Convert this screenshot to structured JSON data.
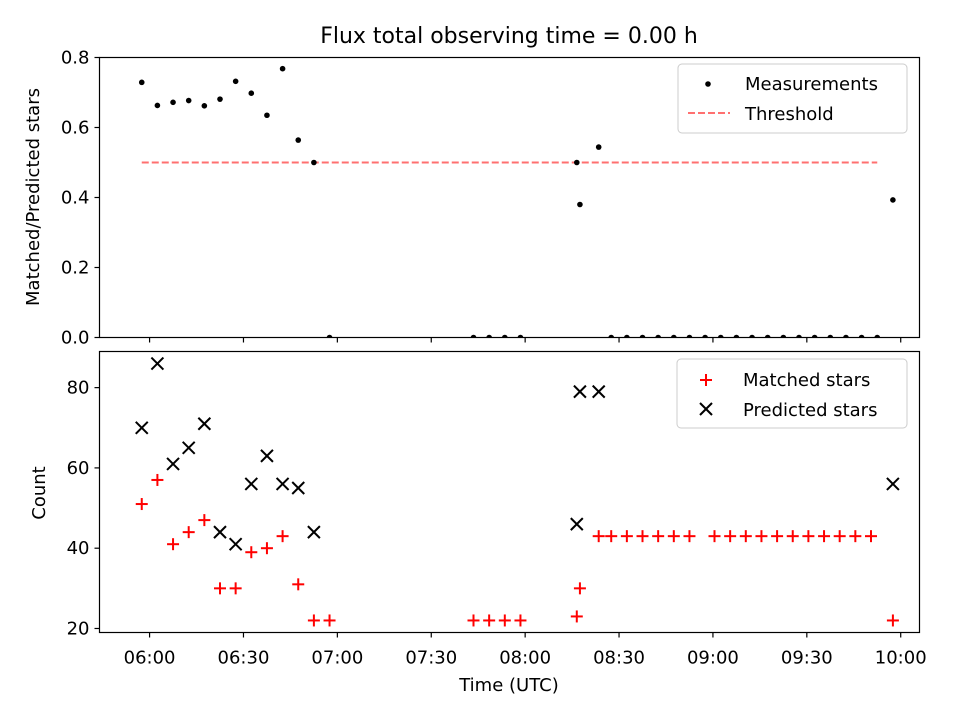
{
  "chart_data": {
    "type": "scatter",
    "title": "Flux total observing time = 0.00 h",
    "xlabel": "Time (UTC)",
    "x_tick_labels": [
      "06:00",
      "06:30",
      "07:00",
      "07:30",
      "08:00",
      "08:30",
      "09:00",
      "09:30",
      "10:00"
    ],
    "x_tick_minutes": [
      360,
      390,
      420,
      450,
      480,
      510,
      540,
      570,
      600
    ],
    "xlim_minutes": [
      344,
      606
    ],
    "top": {
      "ylabel": "Matched/Predicted stars",
      "ylim": [
        0,
        0.8
      ],
      "y_ticks": [
        0.0,
        0.2,
        0.4,
        0.6,
        0.8
      ],
      "y_tick_labels": [
        "0.0",
        "0.2",
        "0.4",
        "0.6",
        "0.8"
      ],
      "measurements": {
        "name": "Measurements",
        "color": "#000000",
        "x": [
          357.5,
          362.5,
          367.5,
          372.5,
          377.5,
          382.5,
          387.5,
          392.5,
          397.5,
          402.5,
          407.5,
          412.5,
          417.5,
          463.5,
          468.5,
          473.5,
          478.5,
          496.5,
          497.5,
          503.5,
          507.5,
          512.5,
          517.5,
          522.5,
          527.5,
          532.5,
          537.5,
          542.5,
          547.5,
          552.5,
          557.5,
          562.5,
          567.5,
          572.5,
          577.5,
          582.5,
          587.5,
          592.5,
          597.5
        ],
        "y": [
          0.729,
          0.663,
          0.672,
          0.677,
          0.662,
          0.681,
          0.732,
          0.698,
          0.635,
          0.768,
          0.564,
          0.5,
          0.0,
          0.0,
          0.0,
          0.0,
          0.0,
          0.5,
          0.38,
          0.544,
          0.0,
          0.0,
          0.0,
          0.0,
          0.0,
          0.0,
          0.0,
          0.0,
          0.0,
          0.0,
          0.0,
          0.0,
          0.0,
          0.0,
          0.0,
          0.0,
          0.0,
          0.0,
          0.393
        ]
      },
      "threshold": {
        "name": "Threshold",
        "color": "#ff7070",
        "value": 0.5,
        "x_range": [
          357.5,
          592.5
        ]
      }
    },
    "bottom": {
      "ylabel": "Count",
      "ylim": [
        19,
        89
      ],
      "y_ticks": [
        20,
        40,
        60,
        80
      ],
      "y_tick_labels": [
        "20",
        "40",
        "60",
        "80"
      ],
      "matched": {
        "name": "Matched stars",
        "color": "#ff0000",
        "x": [
          357.5,
          362.5,
          367.5,
          372.5,
          377.5,
          382.5,
          387.5,
          392.5,
          397.5,
          402.5,
          407.5,
          412.5,
          417.5,
          463.5,
          468.5,
          473.5,
          478.5,
          496.5,
          497.5,
          503.5,
          507.5,
          512.5,
          517.5,
          522.5,
          527.5,
          532.5,
          540.5,
          545.5,
          550.5,
          555.5,
          560.5,
          565.5,
          570.5,
          575.5,
          580.5,
          585.5,
          590.5,
          597.5
        ],
        "y": [
          51,
          57,
          41,
          44,
          47,
          30,
          30,
          39,
          40,
          43,
          31,
          22,
          22,
          22,
          22,
          22,
          22,
          23,
          30,
          43,
          43,
          43,
          43,
          43,
          43,
          43,
          43,
          43,
          43,
          43,
          43,
          43,
          43,
          43,
          43,
          43,
          43,
          22
        ]
      },
      "predicted": {
        "name": "Predicted stars",
        "color": "#000000",
        "x": [
          357.5,
          362.5,
          367.5,
          372.5,
          377.5,
          382.5,
          387.5,
          392.5,
          397.5,
          402.5,
          407.5,
          412.5,
          496.5,
          497.5,
          503.5,
          597.5
        ],
        "y": [
          70,
          86,
          61,
          65,
          71,
          44,
          41,
          56,
          63,
          56,
          55,
          44,
          46,
          79,
          79,
          56
        ]
      }
    }
  }
}
